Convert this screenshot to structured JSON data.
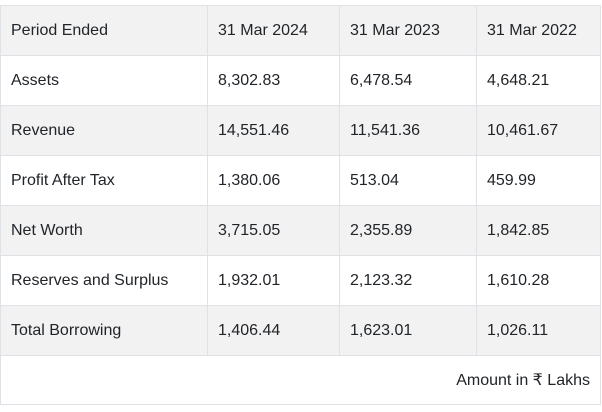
{
  "table": {
    "columns": [
      "Period Ended",
      "31 Mar 2024",
      "31 Mar 2023",
      "31 Mar 2022"
    ],
    "rows": [
      {
        "label": "Assets",
        "values": [
          "8,302.83",
          "6,478.54",
          "4,648.21"
        ]
      },
      {
        "label": "Revenue",
        "values": [
          "14,551.46",
          "11,541.36",
          "10,461.67"
        ]
      },
      {
        "label": "Profit After Tax",
        "values": [
          "1,380.06",
          "513.04",
          "459.99"
        ]
      },
      {
        "label": "Net Worth",
        "values": [
          "3,715.05",
          "2,355.89",
          "1,842.85"
        ]
      },
      {
        "label": "Reserves and Surplus",
        "values": [
          "1,932.01",
          "2,123.32",
          "1,610.28"
        ]
      },
      {
        "label": "Total Borrowing",
        "values": [
          "1,406.44",
          "1,623.01",
          "1,026.11"
        ]
      }
    ],
    "footnote": "Amount in ₹ Lakhs"
  },
  "colors": {
    "stripe": "#f2f2f2",
    "border": "#dee2e6",
    "text": "#212529",
    "background": "#ffffff"
  }
}
